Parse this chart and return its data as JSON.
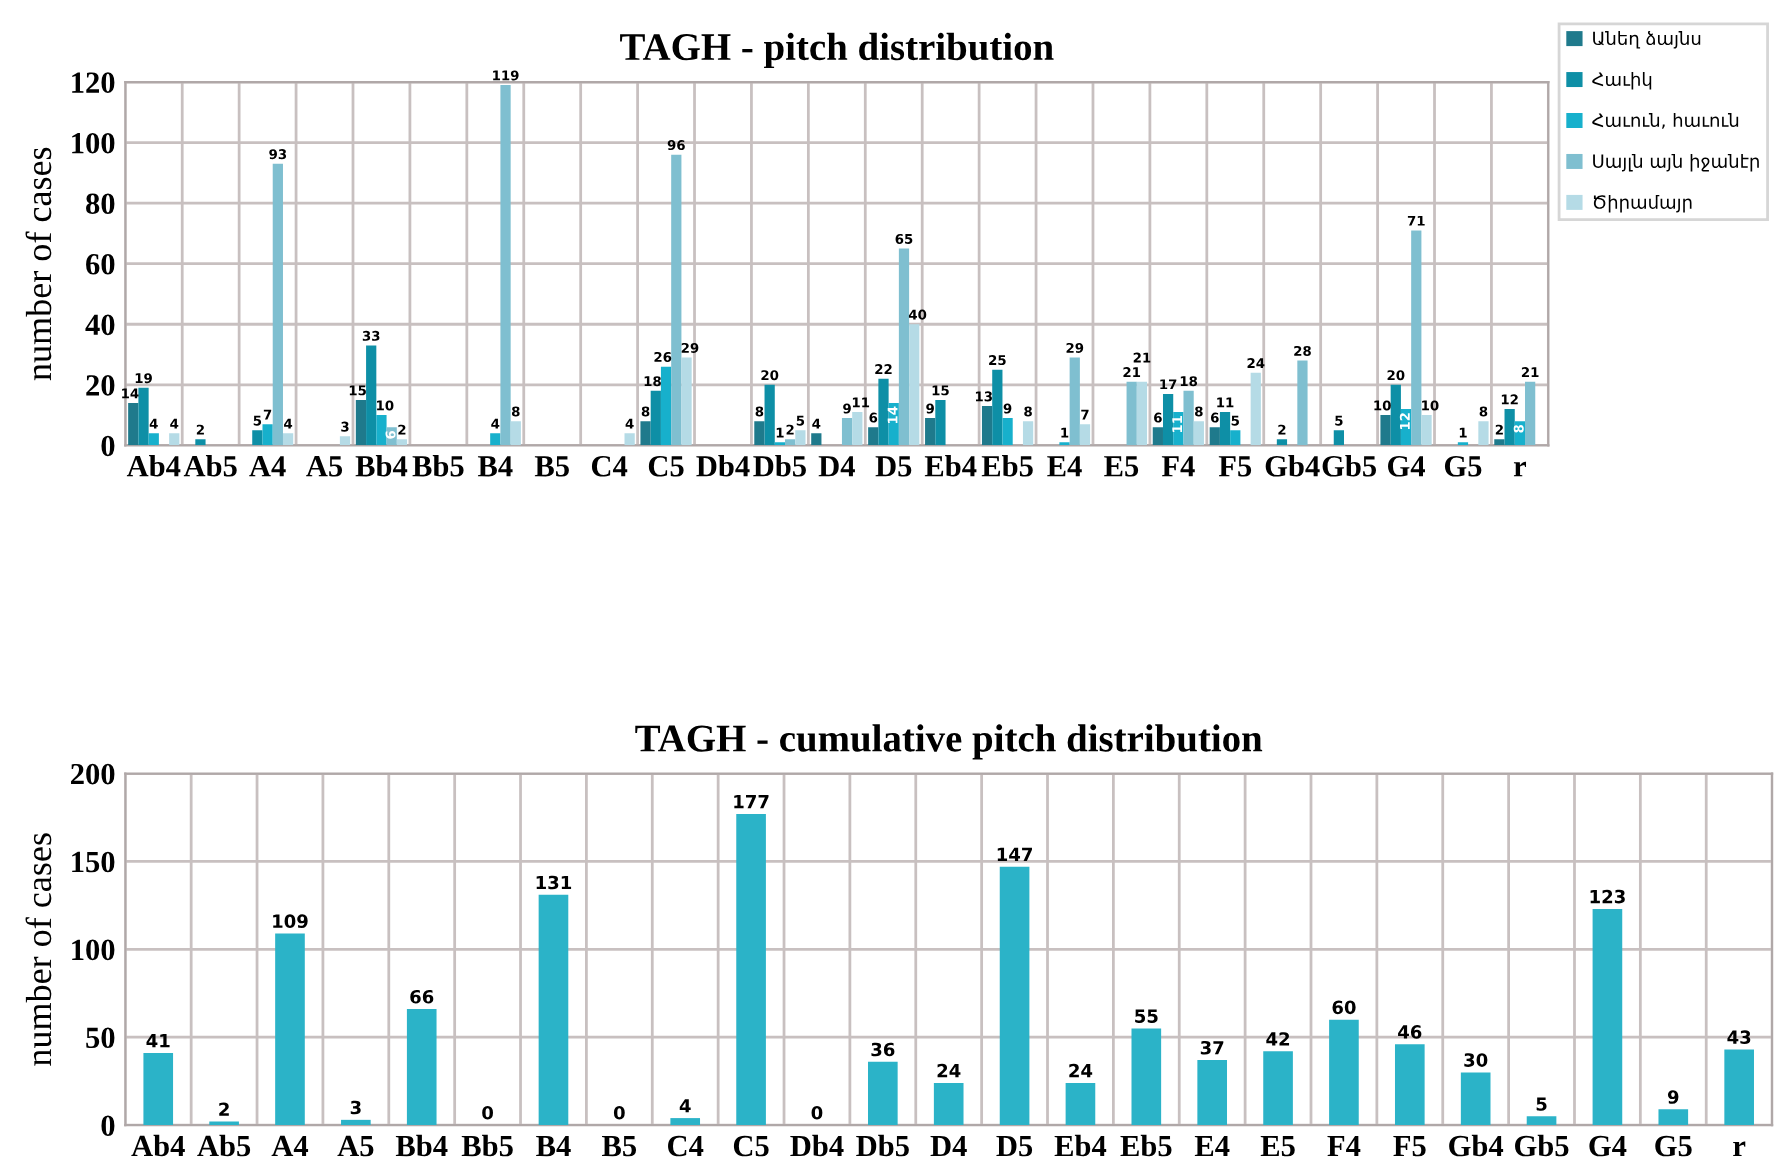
{
  "chart_data": [
    {
      "type": "bar",
      "title": "TAGH - pitch distribution",
      "ylabel": "number of cases",
      "categories": [
        "Ab4",
        "Ab5",
        "A4",
        "A5",
        "Bb4",
        "Bb5",
        "B4",
        "B5",
        "C4",
        "C5",
        "Db4",
        "Db5",
        "D4",
        "D5",
        "Eb4",
        "Eb5",
        "E4",
        "E5",
        "F4",
        "F5",
        "Gb4",
        "Gb5",
        "G4",
        "G5",
        "r"
      ],
      "series": [
        {
          "name": "Անեղ ձայնս",
          "color": "#1f7a8c",
          "values": [
            14,
            null,
            null,
            null,
            15,
            null,
            null,
            null,
            null,
            8,
            null,
            8,
            4,
            6,
            9,
            13,
            null,
            null,
            6,
            6,
            null,
            null,
            10,
            null,
            2
          ]
        },
        {
          "name": "Հաւիկ",
          "color": "#0e8fa6",
          "values": [
            19,
            2,
            5,
            null,
            33,
            null,
            null,
            null,
            null,
            18,
            null,
            20,
            null,
            22,
            15,
            25,
            null,
            null,
            17,
            11,
            2,
            5,
            20,
            null,
            12
          ]
        },
        {
          "name": "Հաւուն, հաւուն",
          "color": "#17b0cc",
          "values": [
            4,
            null,
            7,
            null,
            10,
            null,
            4,
            null,
            null,
            26,
            null,
            1,
            null,
            14,
            null,
            9,
            1,
            null,
            11,
            5,
            null,
            null,
            12,
            1,
            8
          ]
        },
        {
          "name": "Սայլն այն իջանէր",
          "color": "#7fbfd0",
          "values": [
            null,
            null,
            93,
            null,
            6,
            null,
            119,
            null,
            null,
            96,
            null,
            2,
            9,
            65,
            null,
            null,
            29,
            21,
            18,
            null,
            28,
            null,
            71,
            null,
            21
          ]
        },
        {
          "name": "Ծիրամայր",
          "color": "#b5dbe6",
          "values": [
            4,
            null,
            4,
            3,
            2,
            null,
            8,
            null,
            4,
            29,
            null,
            5,
            11,
            40,
            null,
            8,
            7,
            21,
            8,
            24,
            null,
            null,
            10,
            8,
            null
          ]
        }
      ],
      "ylim": [
        0,
        120
      ],
      "yticks": [
        0,
        20,
        40,
        60,
        80,
        100,
        120
      ],
      "grid": true,
      "legend": "top right",
      "data_labels": true
    },
    {
      "type": "bar",
      "title": "TAGH - cumulative pitch distribution",
      "ylabel": "number of cases",
      "categories": [
        "Ab4",
        "Ab5",
        "A4",
        "A5",
        "Bb4",
        "Bb5",
        "B4",
        "B5",
        "C4",
        "C5",
        "Db4",
        "Db5",
        "D4",
        "D5",
        "Eb4",
        "Eb5",
        "E4",
        "E5",
        "F4",
        "F5",
        "Gb4",
        "Gb5",
        "G4",
        "G5",
        "r"
      ],
      "series": [
        {
          "color": "#2bb3c8",
          "values": [
            41,
            2,
            109,
            3,
            66,
            0,
            131,
            0,
            4,
            177,
            0,
            36,
            24,
            147,
            24,
            55,
            37,
            42,
            60,
            46,
            30,
            5,
            123,
            9,
            43
          ]
        }
      ],
      "ylim": [
        0,
        200
      ],
      "yticks": [
        0,
        50,
        100,
        150,
        200
      ],
      "grid": true,
      "data_labels": true
    }
  ]
}
